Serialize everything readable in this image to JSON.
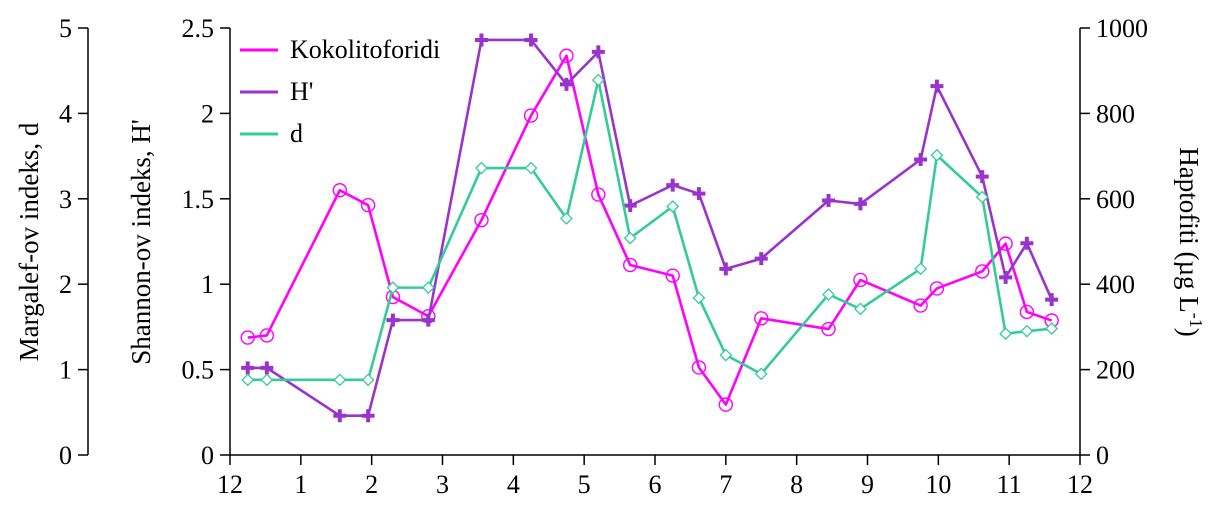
{
  "chart_data": {
    "type": "line",
    "axes": {
      "margalef": {
        "label": "Margalef-ov indeks, d",
        "range": [
          0,
          5
        ],
        "ticks": [
          "0",
          "1",
          "2",
          "3",
          "4",
          "5"
        ]
      },
      "shannon": {
        "label": "Shannon-ov indeks, H'",
        "range": [
          0,
          2.5
        ],
        "ticks": [
          "0",
          "0.5",
          "1",
          "1.5",
          "2",
          "2.5"
        ]
      },
      "haptofiti": {
        "label_main": "Haptofiti (µg L",
        "label_sup": "-1",
        "label_close": ")",
        "range": [
          0,
          1000
        ],
        "ticks": [
          "0",
          "200",
          "400",
          "600",
          "800",
          "1000"
        ]
      },
      "x": {
        "range": [
          12,
          24
        ],
        "ticks": [
          "12",
          "1",
          "2",
          "3",
          "4",
          "5",
          "6",
          "7",
          "8",
          "9",
          "10",
          "11",
          "12"
        ]
      }
    },
    "legend_position": "top-left",
    "series": [
      {
        "name": "Kokolitoforidi",
        "axis": "haptofiti",
        "color": "#ff00ff",
        "marker": "circle",
        "x": [
          12.25,
          12.52,
          13.55,
          13.95,
          14.3,
          14.8,
          15.55,
          16.25,
          16.75,
          17.2,
          17.65,
          18.25,
          18.62,
          19.0,
          19.5,
          20.45,
          20.9,
          21.75,
          21.98,
          22.62,
          22.95,
          23.25,
          23.6
        ],
        "y": [
          275,
          280,
          620,
          585,
          370,
          325,
          550,
          795,
          935,
          610,
          445,
          420,
          205,
          118,
          320,
          295,
          410,
          350,
          390,
          430,
          495,
          335,
          315
        ]
      },
      {
        "name": "H'",
        "axis": "shannon",
        "color": "#9933cc",
        "marker": "plus",
        "x": [
          12.25,
          12.52,
          13.55,
          13.95,
          14.3,
          14.8,
          15.55,
          16.25,
          16.75,
          17.2,
          17.65,
          18.25,
          18.62,
          19.0,
          19.5,
          20.45,
          20.9,
          21.75,
          21.98,
          22.62,
          22.95,
          23.25,
          23.6
        ],
        "y": [
          0.51,
          0.51,
          0.23,
          0.23,
          0.79,
          0.79,
          2.43,
          2.43,
          2.17,
          2.36,
          1.46,
          1.58,
          1.53,
          1.09,
          1.15,
          1.49,
          1.47,
          1.73,
          2.16,
          1.63,
          1.04,
          1.24,
          0.91
        ]
      },
      {
        "name": "d",
        "axis": "margalef",
        "color": "#33cc99",
        "marker": "diamond",
        "x": [
          12.25,
          12.52,
          13.55,
          13.95,
          14.3,
          14.8,
          15.55,
          16.25,
          16.75,
          17.2,
          17.65,
          18.25,
          18.62,
          19.0,
          19.5,
          20.45,
          20.9,
          21.75,
          21.98,
          22.62,
          22.95,
          23.25,
          23.6
        ],
        "y": [
          0.88,
          0.88,
          0.88,
          0.88,
          1.96,
          1.96,
          3.36,
          3.36,
          2.77,
          4.39,
          2.54,
          2.91,
          1.84,
          1.17,
          0.95,
          1.88,
          1.71,
          2.18,
          3.51,
          3.02,
          1.42,
          1.45,
          1.48
        ]
      }
    ]
  }
}
